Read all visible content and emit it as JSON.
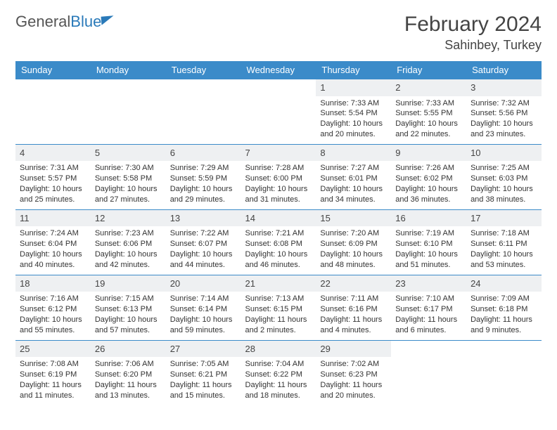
{
  "logo": {
    "word1": "General",
    "word2": "Blue"
  },
  "title": "February 2024",
  "location": "Sahinbey, Turkey",
  "colors": {
    "header_bg": "#3b8bc9",
    "header_text": "#ffffff",
    "row_border": "#3b8bc9",
    "daynum_bg": "#eef0f2",
    "text": "#333333",
    "logo_blue": "#2a7ab9"
  },
  "dow": [
    "Sunday",
    "Monday",
    "Tuesday",
    "Wednesday",
    "Thursday",
    "Friday",
    "Saturday"
  ],
  "weeks": [
    [
      {
        "day": "",
        "sunrise": "",
        "sunset": "",
        "daylight": ""
      },
      {
        "day": "",
        "sunrise": "",
        "sunset": "",
        "daylight": ""
      },
      {
        "day": "",
        "sunrise": "",
        "sunset": "",
        "daylight": ""
      },
      {
        "day": "",
        "sunrise": "",
        "sunset": "",
        "daylight": ""
      },
      {
        "day": "1",
        "sunrise": "Sunrise: 7:33 AM",
        "sunset": "Sunset: 5:54 PM",
        "daylight": "Daylight: 10 hours and 20 minutes."
      },
      {
        "day": "2",
        "sunrise": "Sunrise: 7:33 AM",
        "sunset": "Sunset: 5:55 PM",
        "daylight": "Daylight: 10 hours and 22 minutes."
      },
      {
        "day": "3",
        "sunrise": "Sunrise: 7:32 AM",
        "sunset": "Sunset: 5:56 PM",
        "daylight": "Daylight: 10 hours and 23 minutes."
      }
    ],
    [
      {
        "day": "4",
        "sunrise": "Sunrise: 7:31 AM",
        "sunset": "Sunset: 5:57 PM",
        "daylight": "Daylight: 10 hours and 25 minutes."
      },
      {
        "day": "5",
        "sunrise": "Sunrise: 7:30 AM",
        "sunset": "Sunset: 5:58 PM",
        "daylight": "Daylight: 10 hours and 27 minutes."
      },
      {
        "day": "6",
        "sunrise": "Sunrise: 7:29 AM",
        "sunset": "Sunset: 5:59 PM",
        "daylight": "Daylight: 10 hours and 29 minutes."
      },
      {
        "day": "7",
        "sunrise": "Sunrise: 7:28 AM",
        "sunset": "Sunset: 6:00 PM",
        "daylight": "Daylight: 10 hours and 31 minutes."
      },
      {
        "day": "8",
        "sunrise": "Sunrise: 7:27 AM",
        "sunset": "Sunset: 6:01 PM",
        "daylight": "Daylight: 10 hours and 34 minutes."
      },
      {
        "day": "9",
        "sunrise": "Sunrise: 7:26 AM",
        "sunset": "Sunset: 6:02 PM",
        "daylight": "Daylight: 10 hours and 36 minutes."
      },
      {
        "day": "10",
        "sunrise": "Sunrise: 7:25 AM",
        "sunset": "Sunset: 6:03 PM",
        "daylight": "Daylight: 10 hours and 38 minutes."
      }
    ],
    [
      {
        "day": "11",
        "sunrise": "Sunrise: 7:24 AM",
        "sunset": "Sunset: 6:04 PM",
        "daylight": "Daylight: 10 hours and 40 minutes."
      },
      {
        "day": "12",
        "sunrise": "Sunrise: 7:23 AM",
        "sunset": "Sunset: 6:06 PM",
        "daylight": "Daylight: 10 hours and 42 minutes."
      },
      {
        "day": "13",
        "sunrise": "Sunrise: 7:22 AM",
        "sunset": "Sunset: 6:07 PM",
        "daylight": "Daylight: 10 hours and 44 minutes."
      },
      {
        "day": "14",
        "sunrise": "Sunrise: 7:21 AM",
        "sunset": "Sunset: 6:08 PM",
        "daylight": "Daylight: 10 hours and 46 minutes."
      },
      {
        "day": "15",
        "sunrise": "Sunrise: 7:20 AM",
        "sunset": "Sunset: 6:09 PM",
        "daylight": "Daylight: 10 hours and 48 minutes."
      },
      {
        "day": "16",
        "sunrise": "Sunrise: 7:19 AM",
        "sunset": "Sunset: 6:10 PM",
        "daylight": "Daylight: 10 hours and 51 minutes."
      },
      {
        "day": "17",
        "sunrise": "Sunrise: 7:18 AM",
        "sunset": "Sunset: 6:11 PM",
        "daylight": "Daylight: 10 hours and 53 minutes."
      }
    ],
    [
      {
        "day": "18",
        "sunrise": "Sunrise: 7:16 AM",
        "sunset": "Sunset: 6:12 PM",
        "daylight": "Daylight: 10 hours and 55 minutes."
      },
      {
        "day": "19",
        "sunrise": "Sunrise: 7:15 AM",
        "sunset": "Sunset: 6:13 PM",
        "daylight": "Daylight: 10 hours and 57 minutes."
      },
      {
        "day": "20",
        "sunrise": "Sunrise: 7:14 AM",
        "sunset": "Sunset: 6:14 PM",
        "daylight": "Daylight: 10 hours and 59 minutes."
      },
      {
        "day": "21",
        "sunrise": "Sunrise: 7:13 AM",
        "sunset": "Sunset: 6:15 PM",
        "daylight": "Daylight: 11 hours and 2 minutes."
      },
      {
        "day": "22",
        "sunrise": "Sunrise: 7:11 AM",
        "sunset": "Sunset: 6:16 PM",
        "daylight": "Daylight: 11 hours and 4 minutes."
      },
      {
        "day": "23",
        "sunrise": "Sunrise: 7:10 AM",
        "sunset": "Sunset: 6:17 PM",
        "daylight": "Daylight: 11 hours and 6 minutes."
      },
      {
        "day": "24",
        "sunrise": "Sunrise: 7:09 AM",
        "sunset": "Sunset: 6:18 PM",
        "daylight": "Daylight: 11 hours and 9 minutes."
      }
    ],
    [
      {
        "day": "25",
        "sunrise": "Sunrise: 7:08 AM",
        "sunset": "Sunset: 6:19 PM",
        "daylight": "Daylight: 11 hours and 11 minutes."
      },
      {
        "day": "26",
        "sunrise": "Sunrise: 7:06 AM",
        "sunset": "Sunset: 6:20 PM",
        "daylight": "Daylight: 11 hours and 13 minutes."
      },
      {
        "day": "27",
        "sunrise": "Sunrise: 7:05 AM",
        "sunset": "Sunset: 6:21 PM",
        "daylight": "Daylight: 11 hours and 15 minutes."
      },
      {
        "day": "28",
        "sunrise": "Sunrise: 7:04 AM",
        "sunset": "Sunset: 6:22 PM",
        "daylight": "Daylight: 11 hours and 18 minutes."
      },
      {
        "day": "29",
        "sunrise": "Sunrise: 7:02 AM",
        "sunset": "Sunset: 6:23 PM",
        "daylight": "Daylight: 11 hours and 20 minutes."
      },
      {
        "day": "",
        "sunrise": "",
        "sunset": "",
        "daylight": ""
      },
      {
        "day": "",
        "sunrise": "",
        "sunset": "",
        "daylight": ""
      }
    ]
  ]
}
